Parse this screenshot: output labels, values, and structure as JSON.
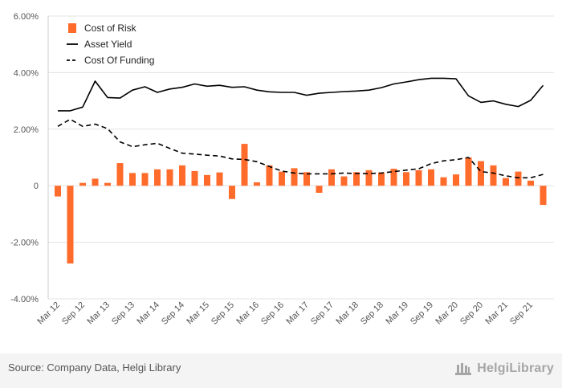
{
  "chart_data": {
    "type": "bar",
    "categories": [
      "Mar 12",
      "Jun 12",
      "Sep 12",
      "Dec 12",
      "Mar 13",
      "Jun 13",
      "Sep 13",
      "Dec 13",
      "Mar 14",
      "Jun 14",
      "Sep 14",
      "Dec 14",
      "Mar 15",
      "Jun 15",
      "Sep 15",
      "Dec 15",
      "Mar 16",
      "Jun 16",
      "Sep 16",
      "Dec 16",
      "Mar 17",
      "Jun 17",
      "Sep 17",
      "Dec 17",
      "Mar 18",
      "Jun 18",
      "Sep 18",
      "Dec 18",
      "Mar 19",
      "Jun 19",
      "Sep 19",
      "Dec 19",
      "Mar 20",
      "Jun 20",
      "Sep 20",
      "Dec 20",
      "Mar 21",
      "Jun 21",
      "Sep 21",
      "Dec 21"
    ],
    "tick_labels": [
      "Mar 12",
      "Sep 12",
      "Mar 13",
      "Sep 13",
      "Mar 14",
      "Sep 14",
      "Mar 15",
      "Sep 15",
      "Mar 16",
      "Sep 16",
      "Mar 17",
      "Sep 17",
      "Mar 18",
      "Sep 18",
      "Mar 19",
      "Sep 19",
      "Mar 20",
      "Sep 20",
      "Mar 21",
      "Sep 21"
    ],
    "y_tick_labels": [
      "6.00%",
      "4.00%",
      "2.00%",
      "0",
      "-2.00%",
      "-4.00%"
    ],
    "ylim": [
      -4,
      6
    ],
    "grid": true,
    "legend_position": "top-left",
    "series": [
      {
        "name": "Cost of Risk",
        "type": "bar",
        "color": "#ff6b2b",
        "values": [
          -0.38,
          -2.75,
          0.1,
          0.25,
          0.1,
          0.8,
          0.45,
          0.45,
          0.58,
          0.58,
          0.72,
          0.52,
          0.38,
          0.47,
          -0.47,
          1.48,
          0.12,
          0.72,
          0.5,
          0.62,
          0.48,
          -0.25,
          0.58,
          0.33,
          0.48,
          0.55,
          0.47,
          0.6,
          0.48,
          0.55,
          0.58,
          0.3,
          0.4,
          1.0,
          0.87,
          0.72,
          0.27,
          0.5,
          0.18,
          -0.68
        ]
      },
      {
        "name": "Asset Yield",
        "type": "line",
        "color": "#000000",
        "dash": "solid",
        "values": [
          2.65,
          2.65,
          2.78,
          3.7,
          3.12,
          3.1,
          3.38,
          3.5,
          3.3,
          3.42,
          3.48,
          3.6,
          3.52,
          3.55,
          3.48,
          3.5,
          3.38,
          3.32,
          3.3,
          3.3,
          3.2,
          3.27,
          3.3,
          3.33,
          3.35,
          3.38,
          3.47,
          3.6,
          3.67,
          3.75,
          3.8,
          3.8,
          3.78,
          3.18,
          2.95,
          3.0,
          2.88,
          2.8,
          3.02,
          3.55
        ]
      },
      {
        "name": "Cost Of Funding",
        "type": "line",
        "color": "#000000",
        "dash": "dashed",
        "values": [
          2.1,
          2.35,
          2.1,
          2.18,
          2.02,
          1.55,
          1.38,
          1.45,
          1.5,
          1.32,
          1.15,
          1.12,
          1.08,
          1.05,
          0.95,
          0.93,
          0.85,
          0.68,
          0.52,
          0.45,
          0.42,
          0.42,
          0.42,
          0.45,
          0.43,
          0.43,
          0.45,
          0.5,
          0.55,
          0.6,
          0.78,
          0.88,
          0.92,
          1.0,
          0.5,
          0.45,
          0.35,
          0.28,
          0.28,
          0.4
        ]
      }
    ]
  },
  "footer": {
    "source": "Source: Company Data, Helgi Library",
    "brand": "HelgiLibrary"
  }
}
